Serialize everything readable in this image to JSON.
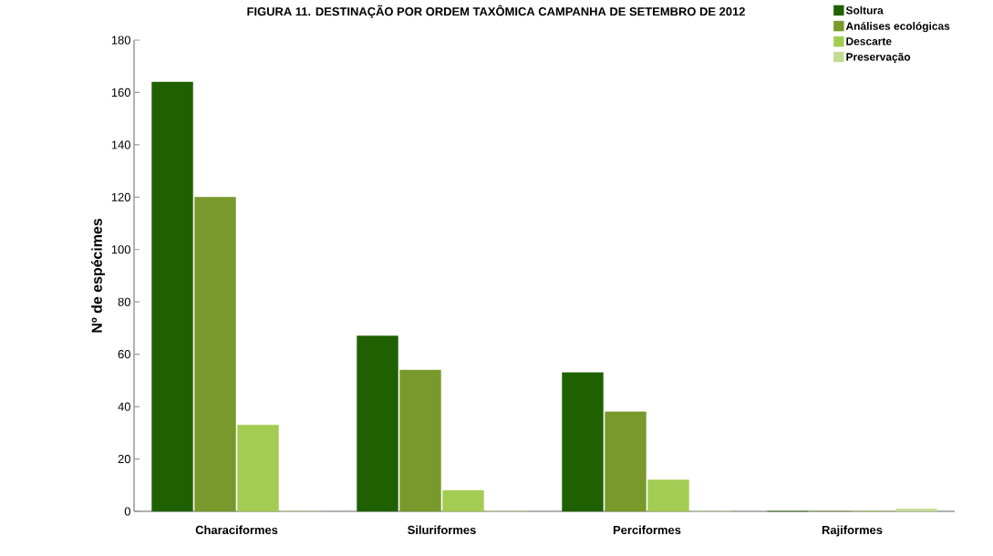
{
  "chart_data": {
    "type": "bar",
    "title": "FIGURA 11. DESTINAÇÃO POR ORDEM TAXÔMICA CAMPANHA DE SETEMBRO DE 2012",
    "ylabel": "Nº de espécimes",
    "categories": [
      "Characiformes",
      "Siluriformes",
      "Perciformes",
      "Rajiformes"
    ],
    "series": [
      {
        "name": "Soltura",
        "color": "#1f6000",
        "values": [
          164,
          67,
          53,
          0
        ]
      },
      {
        "name": "Análises ecológicas",
        "color": "#78992c",
        "values": [
          120,
          54,
          38,
          0
        ]
      },
      {
        "name": "Descarte",
        "color": "#a3cc52",
        "values": [
          33,
          8,
          12,
          0
        ]
      },
      {
        "name": "Preservação",
        "color": "#c4dc94",
        "values": [
          0,
          0,
          0,
          1
        ]
      }
    ],
    "ylim": [
      0,
      180
    ],
    "yticks": [
      0,
      20,
      40,
      60,
      80,
      100,
      120,
      140,
      160,
      180
    ],
    "grid": false,
    "legend": "top right"
  }
}
